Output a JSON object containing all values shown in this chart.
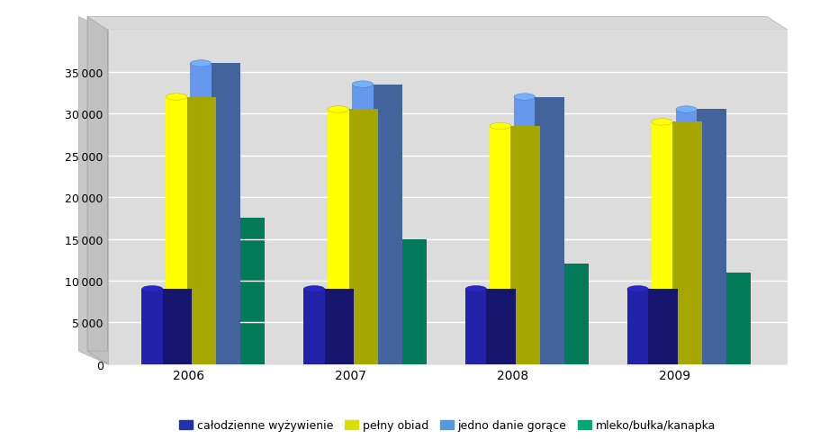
{
  "years": [
    "2006",
    "2007",
    "2008",
    "2009"
  ],
  "series": {
    "całodzienne wyżywienie": [
      9000,
      9000,
      9000,
      9000
    ],
    "pełny obiad": [
      32000,
      30500,
      28500,
      29000
    ],
    "jedno danie gorące": [
      36000,
      33500,
      32000,
      30500
    ],
    "mleko/bułka/kanapka": [
      17500,
      15000,
      12000,
      11000
    ]
  },
  "bar_colors": {
    "całodzienne wyżywienie": "#2222AA",
    "pełny obiad": "#FFFF00",
    "jedno danie gorące": "#6699EE",
    "mleko/bułka/kanapka": "#00BB88"
  },
  "legend_colors": {
    "całodzienne wyżywienie": "#2233AA",
    "pełny obiad": "#DDDD00",
    "jedno danie gorące": "#5599DD",
    "mleko/bułka/kanapka": "#00AA77"
  },
  "ylim": [
    0,
    40000
  ],
  "yticks": [
    0,
    5000,
    10000,
    15000,
    20000,
    25000,
    30000,
    35000
  ],
  "background_color": "#FFFFFF",
  "wall_color": "#DCDCDC",
  "floor_color": "#C0C0C0",
  "grid_color": "#FFFFFF"
}
